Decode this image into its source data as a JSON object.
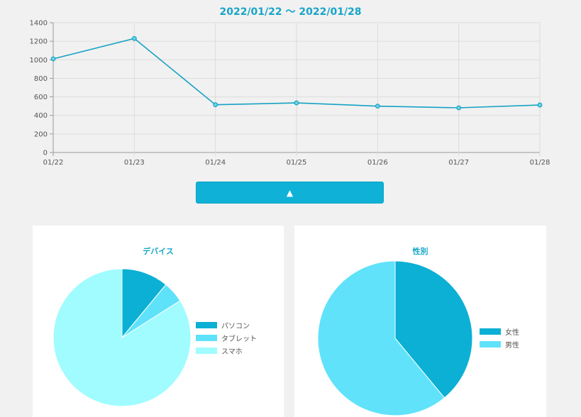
{
  "header": {
    "title": "2022/01/22 ～ 2022/01/28"
  },
  "toggle": {
    "icon": "▲"
  },
  "chart_data": [
    {
      "type": "line",
      "title": "2022/01/22 ～ 2022/01/28",
      "x": [
        "01/22",
        "01/23",
        "01/24",
        "01/25",
        "01/26",
        "01/27",
        "01/28"
      ],
      "series": [
        {
          "values": [
            1010,
            1230,
            515,
            535,
            500,
            482,
            512
          ]
        }
      ],
      "ylim": [
        0,
        1400
      ],
      "yticks": [
        0,
        200,
        400,
        600,
        800,
        1000,
        1200,
        1400
      ],
      "grid": true,
      "color": "#15a2c4"
    },
    {
      "type": "pie",
      "title": "デバイス",
      "categories": [
        "パソコン",
        "タブレット",
        "スマホ"
      ],
      "values": [
        11,
        5,
        84
      ],
      "colors": [
        "#0bb0d4",
        "#5ee2fa",
        "#a0fcfe"
      ],
      "legend": "right"
    },
    {
      "type": "pie",
      "title": "性別",
      "categories": [
        "女性",
        "男性"
      ],
      "values": [
        39,
        61
      ],
      "colors": [
        "#0bb0d4",
        "#60e2fb"
      ],
      "legend": "right"
    }
  ]
}
